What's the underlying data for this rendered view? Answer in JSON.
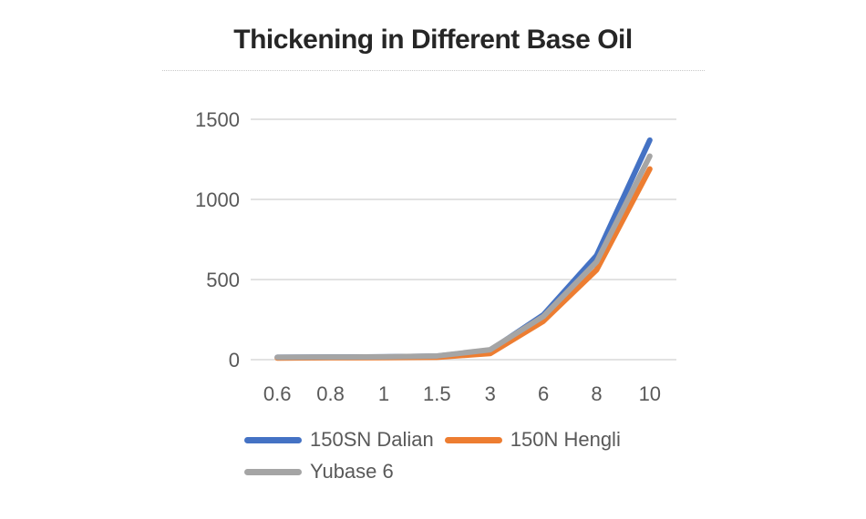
{
  "page": {
    "background": "#ffffff"
  },
  "chart_data": {
    "type": "line",
    "title": "Thickening in Different Base Oil",
    "categories": [
      "0.6",
      "0.8",
      "1",
      "1.5",
      "3",
      "6",
      "8",
      "10"
    ],
    "series": [
      {
        "name": "150SN Dalian",
        "color": "#4472C4",
        "values": [
          15,
          16,
          18,
          22,
          58,
          280,
          650,
          1370
        ]
      },
      {
        "name": "150N Hengli",
        "color": "#ED7D31",
        "values": [
          10,
          12,
          13,
          15,
          38,
          240,
          560,
          1190
        ]
      },
      {
        "name": "Yubase 6",
        "color": "#A5A5A5",
        "values": [
          15,
          16,
          18,
          23,
          62,
          270,
          610,
          1270
        ]
      }
    ],
    "yticks": [
      0,
      500,
      1000,
      1500
    ],
    "ylim": [
      0,
      1500
    ],
    "grid": true,
    "legend_position": "bottom"
  },
  "colors": {
    "grid": "#D9D9D9",
    "axis_text": "#595959",
    "title_text": "#262626",
    "separator": "#C9C9C9"
  }
}
